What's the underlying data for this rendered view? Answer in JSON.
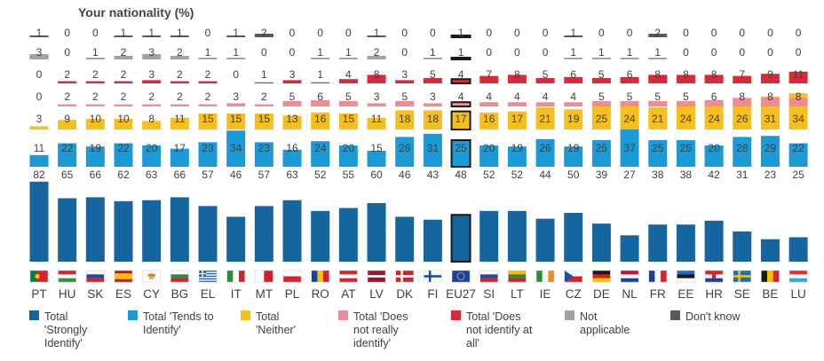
{
  "chart_data": {
    "type": "bar",
    "title": "Your nationality",
    "unit": "(%)",
    "categories": [
      "PT",
      "HU",
      "SK",
      "ES",
      "CY",
      "BG",
      "EL",
      "IT",
      "MT",
      "PL",
      "RO",
      "AT",
      "LV",
      "DK",
      "FI",
      "EU27",
      "SI",
      "LT",
      "IE",
      "CZ",
      "DE",
      "NL",
      "FR",
      "EE",
      "HR",
      "SE",
      "BE",
      "LU"
    ],
    "highlight": "EU27",
    "series": [
      {
        "name": "Total 'Strongly Identify'",
        "color": "#1565a0",
        "values": [
          82,
          65,
          66,
          62,
          63,
          66,
          57,
          46,
          57,
          63,
          52,
          55,
          60,
          46,
          43,
          48,
          52,
          52,
          44,
          50,
          39,
          27,
          38,
          38,
          42,
          31,
          23,
          25
        ]
      },
      {
        "name": "Total 'Tends to Identify'",
        "color": "#1a9ad6",
        "values": [
          11,
          22,
          19,
          22,
          20,
          17,
          23,
          34,
          23,
          16,
          24,
          20,
          15,
          28,
          31,
          25,
          20,
          19,
          26,
          19,
          25,
          37,
          25,
          25,
          20,
          28,
          29,
          22
        ]
      },
      {
        "name": "Total 'Neither'",
        "color": "#f7bf1b",
        "values": [
          3,
          9,
          10,
          10,
          8,
          11,
          15,
          15,
          15,
          13,
          16,
          15,
          11,
          18,
          18,
          17,
          16,
          17,
          21,
          19,
          25,
          24,
          21,
          24,
          24,
          26,
          31,
          34
        ]
      },
      {
        "name": "Total 'Does not really identify'",
        "color": "#f08a95",
        "values": [
          0,
          2,
          2,
          2,
          2,
          2,
          2,
          3,
          2,
          5,
          6,
          5,
          3,
          5,
          3,
          4,
          4,
          4,
          4,
          4,
          5,
          5,
          5,
          5,
          6,
          8,
          8,
          8
        ]
      },
      {
        "name": "Total 'Does not identify at all'",
        "color": "#d9293b",
        "values": [
          0,
          2,
          2,
          2,
          3,
          2,
          2,
          0,
          1,
          3,
          1,
          4,
          8,
          3,
          5,
          4,
          7,
          8,
          5,
          6,
          5,
          6,
          8,
          8,
          8,
          7,
          9,
          11
        ]
      },
      {
        "name": "Not applicable",
        "color": "#a8a09a",
        "values": [
          3,
          0,
          1,
          2,
          3,
          2,
          1,
          1,
          0,
          0,
          1,
          1,
          2,
          0,
          1,
          1,
          0,
          0,
          0,
          1,
          1,
          1,
          1,
          0,
          0,
          0,
          0,
          0
        ]
      },
      {
        "name": "Don't know",
        "color": "#5a5a5a",
        "values": [
          1,
          0,
          0,
          1,
          1,
          1,
          0,
          1,
          2,
          0,
          0,
          0,
          1,
          0,
          0,
          1,
          0,
          0,
          0,
          1,
          0,
          0,
          2,
          0,
          0,
          0,
          0,
          0
        ]
      }
    ]
  },
  "legend": [
    {
      "name": "Total 'Strongly Identify'",
      "lines": [
        "Total",
        "'Strongly",
        "Identify'"
      ]
    },
    {
      "name": "Total 'Tends to Identify'",
      "lines": [
        "Total 'Tends to",
        "Identify'"
      ]
    },
    {
      "name": "Total 'Neither'",
      "lines": [
        "Total",
        "'Neither'"
      ]
    },
    {
      "name": "Total 'Does not really identify'",
      "lines": [
        "Total 'Does",
        "not really",
        "identify'"
      ]
    },
    {
      "name": "Total 'Does not identify at all'",
      "lines": [
        "Total 'Does",
        "not identify at",
        "all'"
      ]
    },
    {
      "name": "Not applicable",
      "lines": [
        "Not",
        "applicable"
      ]
    },
    {
      "name": "Don't know",
      "lines": [
        "Don't know"
      ]
    }
  ],
  "flags": {
    "PT": {
      "type": "v",
      "colors": [
        "#0a7a3c",
        "#d5232e"
      ],
      "split": 0.4
    },
    "HU": {
      "type": "h",
      "colors": [
        "#d5232e",
        "#ffffff",
        "#3a8a3f"
      ]
    },
    "SK": {
      "type": "h",
      "colors": [
        "#ffffff",
        "#1a4fa0",
        "#d5232e"
      ]
    },
    "ES": {
      "type": "h",
      "colors": [
        "#c8102e",
        "#f7c300",
        "#f7c300",
        "#c8102e"
      ]
    },
    "CY": {
      "type": "h",
      "colors": [
        "#ffffff"
      ],
      "emblem": "#d98b2a"
    },
    "BG": {
      "type": "h",
      "colors": [
        "#ffffff",
        "#2e8b3e",
        "#d5232e"
      ]
    },
    "EL": {
      "type": "stripes",
      "colors": [
        "#1f5fb0",
        "#ffffff"
      ]
    },
    "IT": {
      "type": "v",
      "colors": [
        "#2e8b3e",
        "#ffffff",
        "#d5232e"
      ]
    },
    "MT": {
      "type": "v",
      "colors": [
        "#ffffff",
        "#cf1f2e"
      ]
    },
    "PL": {
      "type": "h",
      "colors": [
        "#ffffff",
        "#d5232e"
      ]
    },
    "RO": {
      "type": "v",
      "colors": [
        "#1a3f9c",
        "#f7c300",
        "#d5232e"
      ]
    },
    "AT": {
      "type": "h",
      "colors": [
        "#d5232e",
        "#ffffff",
        "#d5232e"
      ]
    },
    "LV": {
      "type": "h",
      "colors": [
        "#8e1b2d",
        "#8e1b2d",
        "#ffffff",
        "#8e1b2d",
        "#8e1b2d"
      ]
    },
    "DK": {
      "type": "cross",
      "colors": [
        "#d5232e",
        "#ffffff"
      ]
    },
    "FI": {
      "type": "cross",
      "colors": [
        "#ffffff",
        "#1a4fa0"
      ]
    },
    "EU27": {
      "type": "h",
      "colors": [
        "#1a3f9c"
      ],
      "stars": "#f7c300"
    },
    "SI": {
      "type": "h",
      "colors": [
        "#ffffff",
        "#1a4fa0",
        "#d5232e"
      ]
    },
    "LT": {
      "type": "h",
      "colors": [
        "#f7c300",
        "#2e8b3e",
        "#d5232e"
      ]
    },
    "IE": {
      "type": "v",
      "colors": [
        "#2e8b3e",
        "#ffffff",
        "#f08a24"
      ]
    },
    "CZ": {
      "type": "h",
      "colors": [
        "#ffffff",
        "#d5232e"
      ],
      "triangle": "#1a4fa0"
    },
    "DE": {
      "type": "h",
      "colors": [
        "#1a1a1a",
        "#dd1c1c",
        "#f7c300"
      ]
    },
    "NL": {
      "type": "h",
      "colors": [
        "#c8102e",
        "#ffffff",
        "#1a3f9c"
      ]
    },
    "FR": {
      "type": "v",
      "colors": [
        "#1a3f9c",
        "#ffffff",
        "#d5232e"
      ]
    },
    "EE": {
      "type": "h",
      "colors": [
        "#1a6ec8",
        "#1a1a1a",
        "#ffffff"
      ]
    },
    "HR": {
      "type": "h",
      "colors": [
        "#d5232e",
        "#ffffff",
        "#1a3f9c"
      ],
      "emblem": "#d5232e"
    },
    "SE": {
      "type": "cross",
      "colors": [
        "#1a6ec8",
        "#f7c300"
      ]
    },
    "BE": {
      "type": "v",
      "colors": [
        "#1a1a1a",
        "#f7c300",
        "#d5232e"
      ]
    },
    "LU": {
      "type": "h",
      "colors": [
        "#e8283b",
        "#ffffff",
        "#33a8e0"
      ]
    }
  }
}
